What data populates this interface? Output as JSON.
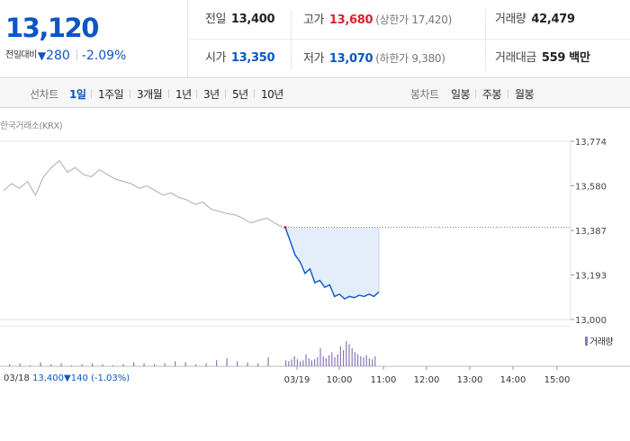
{
  "summary": {
    "current_price": "13,120",
    "change_label": "전일대비",
    "change_arrow": "▼",
    "change_amount": "280",
    "change_rate": "-2.09%",
    "prev_close": {
      "label": "전일",
      "value": "13,400"
    },
    "high": {
      "label": "고가",
      "value": "13,680",
      "sub": "(상한가 17,420)"
    },
    "volume": {
      "label": "거래량",
      "value": "42,479"
    },
    "open": {
      "label": "시가",
      "value": "13,350"
    },
    "low": {
      "label": "저가",
      "value": "13,070",
      "sub": "(하한가 9,380)"
    },
    "amount": {
      "label": "거래대금",
      "value": "559 백만"
    }
  },
  "tabs": {
    "line_title": "선차트",
    "line_periods": [
      {
        "label": "1일",
        "active": true
      },
      {
        "label": "1주일",
        "active": false
      },
      {
        "label": "3개월",
        "active": false
      },
      {
        "label": "1년",
        "active": false
      },
      {
        "label": "3년",
        "active": false
      },
      {
        "label": "5년",
        "active": false
      },
      {
        "label": "10년",
        "active": false
      }
    ],
    "candle_title": "봉차트",
    "candle_periods": [
      {
        "label": "일봉"
      },
      {
        "label": "주봉"
      },
      {
        "label": "월봉"
      }
    ]
  },
  "chart": {
    "source": "한국거래소(KRX)",
    "volume_legend": "거래량",
    "prev_day_info": {
      "date": "03/18",
      "close": "13,400",
      "arrow": "▼",
      "change": "140",
      "rate": "(-1.03%)"
    }
  },
  "colors": {
    "fall": "#0b56c4",
    "rise": "#e0202a",
    "prev_day_line": "#b8b8b8",
    "today_fill": "#e4edfa",
    "volume_bar": "#8a78b8"
  },
  "chart_data": {
    "type": "line",
    "yticks": [
      "13,774",
      "13,580",
      "13,387",
      "13,193",
      "13,000"
    ],
    "ylim": [
      13000,
      13774
    ],
    "xticks": [
      "03/18",
      "03/19",
      "10:00",
      "11:00",
      "12:00",
      "13:00",
      "14:00",
      "15:00"
    ],
    "reference_price": 13400,
    "series": [
      {
        "values": [
          13560,
          13590,
          13570,
          13600,
          13540,
          13620,
          13660,
          13690,
          13640,
          13660,
          13630,
          13620,
          13650,
          13630,
          13610,
          13600,
          13590,
          13570,
          13580,
          13560,
          13540,
          13550,
          13530,
          13520,
          13500,
          13510,
          13480,
          13470,
          13460,
          13455,
          13440,
          13420,
          13430,
          13440,
          13420,
          13400
        ]
      },
      {
        "values": [
          13400,
          13340,
          13280,
          13250,
          13200,
          13220,
          13160,
          13170,
          13140,
          13150,
          13100,
          13110,
          13090,
          13100,
          13095,
          13105,
          13100,
          13110,
          13100,
          13120
        ]
      }
    ],
    "volume": [
      2,
      3,
      1,
      4,
      2,
      3,
      1,
      2,
      3,
      2,
      1,
      2,
      4,
      3,
      2,
      3,
      5,
      4,
      2,
      3,
      6,
      8,
      5,
      4,
      3,
      9,
      6,
      5,
      7,
      10,
      7,
      5,
      6,
      12,
      8,
      6,
      7,
      9,
      18,
      10,
      8,
      11,
      14,
      9,
      12,
      20,
      16,
      25,
      22,
      18,
      14,
      12,
      10,
      9,
      11,
      8,
      7,
      10
    ]
  }
}
